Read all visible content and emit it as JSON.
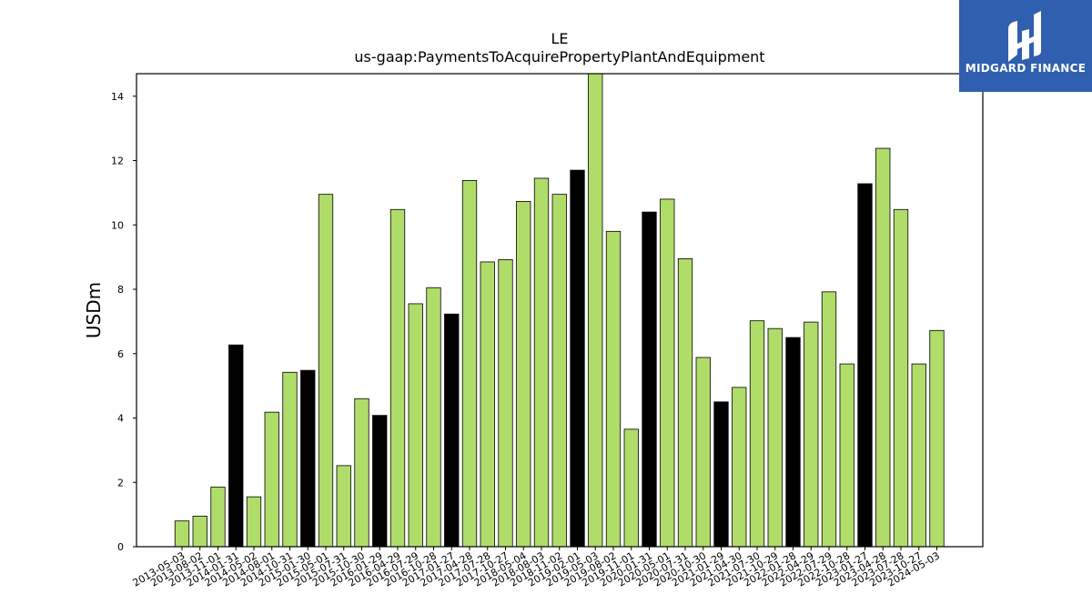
{
  "logo": {
    "text": "MIDGARD FINANCE",
    "background": "#2f5fae"
  },
  "chart_data": {
    "type": "bar",
    "title": "LE",
    "subtitle": "us-gaap:PaymentsToAcquirePropertyPlantAndEquipment",
    "xlabel": "",
    "ylabel": "USDm",
    "ylim": [
      0,
      14.7
    ],
    "yticks": [
      0,
      2,
      4,
      6,
      8,
      10,
      12,
      14
    ],
    "grid": false,
    "colors": {
      "quarterly": "#b0dc6a",
      "annual": "#000000",
      "edge": "#000000"
    },
    "categories": [
      "2013-05-03",
      "2013-08-02",
      "2013-11-01",
      "2014-01-31",
      "2014-05-02",
      "2014-08-01",
      "2014-10-31",
      "2015-01-30",
      "2015-05-01",
      "2015-07-31",
      "2015-10-30",
      "2016-01-29",
      "2016-04-29",
      "2016-07-29",
      "2016-10-28",
      "2017-01-27",
      "2017-04-28",
      "2017-07-28",
      "2017-10-27",
      "2018-05-04",
      "2018-08-03",
      "2018-11-02",
      "2019-02-01",
      "2019-05-03",
      "2019-08-02",
      "2019-11-01",
      "2020-01-31",
      "2020-05-01",
      "2020-07-31",
      "2020-10-30",
      "2021-01-29",
      "2021-04-30",
      "2021-07-30",
      "2021-10-29",
      "2022-01-28",
      "2022-04-29",
      "2022-07-29",
      "2022-10-28",
      "2023-01-27",
      "2023-04-28",
      "2023-07-28",
      "2023-10-27",
      "2024-05-03"
    ],
    "values": [
      0.8,
      0.95,
      1.85,
      6.27,
      1.55,
      4.18,
      5.42,
      5.48,
      10.95,
      2.52,
      4.6,
      4.08,
      10.48,
      7.55,
      8.05,
      7.23,
      11.38,
      8.85,
      8.92,
      10.73,
      11.45,
      10.95,
      11.7,
      14.75,
      9.8,
      3.65,
      10.4,
      10.8,
      8.95,
      5.88,
      4.5,
      4.95,
      7.02,
      6.78,
      6.5,
      6.98,
      7.92,
      5.68,
      11.28,
      12.38,
      10.48,
      5.68,
      6.72
    ],
    "highlight": [
      false,
      false,
      false,
      true,
      false,
      false,
      false,
      true,
      false,
      false,
      false,
      true,
      false,
      false,
      false,
      true,
      false,
      false,
      false,
      false,
      false,
      false,
      true,
      false,
      false,
      false,
      true,
      false,
      false,
      false,
      true,
      false,
      false,
      false,
      true,
      false,
      false,
      false,
      true,
      false,
      false,
      false,
      false
    ]
  }
}
